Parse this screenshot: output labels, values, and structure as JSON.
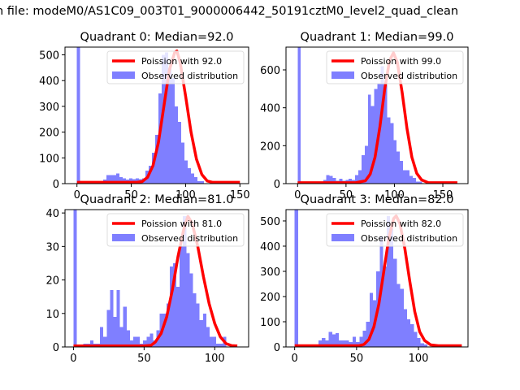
{
  "suptitle": "n file: modeM0/AS1C09_003T01_9000006442_50191cztM0_level2_quad_clean",
  "colors": {
    "hist": "#7f7fff",
    "poisson": "#ff0000"
  },
  "chart_data": [
    {
      "type": "bar",
      "title": "Quadrant 0: Median=92.0",
      "xlim": [
        -11,
        158
      ],
      "ylim": [
        0,
        530
      ],
      "xticks": [
        0,
        50,
        100,
        150
      ],
      "yticks": [
        0,
        100,
        200,
        300,
        400,
        500
      ],
      "legend": {
        "placement": "top-right",
        "entries": [
          "Poission with 92.0",
          "Observed distribution"
        ]
      },
      "bin_width": 3,
      "bins_start": 0,
      "hist_values": [
        600,
        0,
        0,
        0,
        0,
        0,
        0,
        10,
        15,
        33,
        33,
        33,
        40,
        25,
        20,
        15,
        20,
        18,
        20,
        18,
        20,
        50,
        70,
        120,
        190,
        350,
        500,
        510,
        450,
        410,
        300,
        240,
        160,
        90,
        60,
        40,
        25,
        10,
        10,
        0,
        0,
        0,
        0,
        0,
        0,
        0,
        0,
        0,
        0,
        0
      ],
      "poisson_x": [
        0,
        55,
        60,
        65,
        70,
        75,
        80,
        85,
        90,
        92,
        95,
        100,
        105,
        110,
        115,
        120,
        125,
        130,
        150
      ],
      "poisson_y": [
        5,
        5,
        8,
        25,
        70,
        160,
        300,
        440,
        510,
        515,
        470,
        340,
        200,
        95,
        35,
        10,
        5,
        5,
        5
      ]
    },
    {
      "type": "bar",
      "title": "Quadrant 1: Median=99.0",
      "xlim": [
        -12,
        176
      ],
      "ylim": [
        0,
        720
      ],
      "xticks": [
        0,
        50,
        100,
        150
      ],
      "yticks": [
        0,
        200,
        400,
        600
      ],
      "legend": {
        "placement": "top-right",
        "entries": [
          "Poission with 99.0",
          "Observed distribution"
        ]
      },
      "bin_width": 3.3,
      "bins_start": 0,
      "hist_values": [
        800,
        0,
        0,
        0,
        0,
        0,
        0,
        10,
        20,
        45,
        40,
        30,
        15,
        25,
        15,
        20,
        25,
        20,
        45,
        70,
        150,
        200,
        470,
        410,
        500,
        530,
        620,
        520,
        350,
        320,
        230,
        170,
        120,
        70,
        70,
        40,
        30,
        10,
        10,
        0,
        0,
        0,
        0,
        0,
        0,
        0,
        0,
        0,
        0,
        0
      ],
      "poisson_x": [
        0,
        60,
        70,
        75,
        80,
        85,
        90,
        95,
        99,
        103,
        108,
        113,
        118,
        123,
        128,
        135,
        145,
        165
      ],
      "poisson_y": [
        5,
        5,
        15,
        50,
        140,
        300,
        500,
        650,
        690,
        640,
        480,
        290,
        140,
        55,
        20,
        5,
        5,
        5
      ]
    },
    {
      "type": "bar",
      "title": "Quadrant 2: Median=81.0",
      "xlim": [
        -6,
        124
      ],
      "ylim": [
        0,
        41
      ],
      "xticks": [
        0,
        50,
        100
      ],
      "yticks": [
        0,
        10,
        20,
        30,
        40
      ],
      "legend": {
        "placement": "top-right",
        "entries": [
          "Poission with 81.0",
          "Observed distribution"
        ]
      },
      "bin_width": 2.35,
      "bins_start": 0,
      "hist_values": [
        45,
        0,
        0,
        1,
        1,
        2,
        1,
        1,
        6,
        3,
        11,
        17,
        9,
        17,
        6,
        12,
        5,
        2,
        3,
        3,
        1,
        2,
        3,
        4,
        2,
        5,
        10,
        10,
        13,
        24,
        25,
        18,
        30,
        39,
        28,
        22,
        16,
        13,
        8,
        10,
        6,
        3,
        3,
        1,
        1,
        3,
        0
      ],
      "poisson_x": [
        0,
        50,
        55,
        58,
        62,
        66,
        70,
        74,
        78,
        81,
        84,
        88,
        92,
        96,
        100,
        104,
        108,
        112,
        116
      ],
      "poisson_y": [
        0.3,
        0.3,
        0.5,
        1.5,
        4,
        9,
        17,
        27,
        35,
        39,
        37,
        30,
        21,
        13,
        7,
        3,
        1,
        0.4,
        0.3
      ]
    },
    {
      "type": "bar",
      "title": "Quadrant 3: Median=82.0",
      "xlim": [
        -7,
        140
      ],
      "ylim": [
        0,
        545
      ],
      "xticks": [
        0,
        50,
        100
      ],
      "yticks": [
        0,
        100,
        200,
        300,
        400,
        500
      ],
      "legend": {
        "placement": "top-right",
        "entries": [
          "Poission with 82.0",
          "Observed distribution"
        ]
      },
      "bin_width": 2.75,
      "bins_start": 0,
      "hist_values": [
        600,
        0,
        0,
        0,
        0,
        0,
        0,
        25,
        35,
        25,
        60,
        50,
        55,
        25,
        25,
        25,
        20,
        40,
        20,
        40,
        65,
        100,
        215,
        185,
        300,
        440,
        320,
        520,
        470,
        350,
        250,
        230,
        150,
        110,
        90,
        60,
        35,
        15,
        10,
        0,
        0,
        0,
        0,
        0,
        0,
        0,
        0,
        0,
        0
      ],
      "poisson_x": [
        0,
        52,
        56,
        60,
        64,
        68,
        72,
        76,
        80,
        82,
        85,
        89,
        93,
        97,
        101,
        105,
        110,
        116,
        135
      ],
      "poisson_y": [
        5,
        5,
        10,
        30,
        80,
        170,
        300,
        430,
        510,
        520,
        490,
        390,
        260,
        140,
        60,
        25,
        8,
        5,
        5
      ]
    }
  ]
}
